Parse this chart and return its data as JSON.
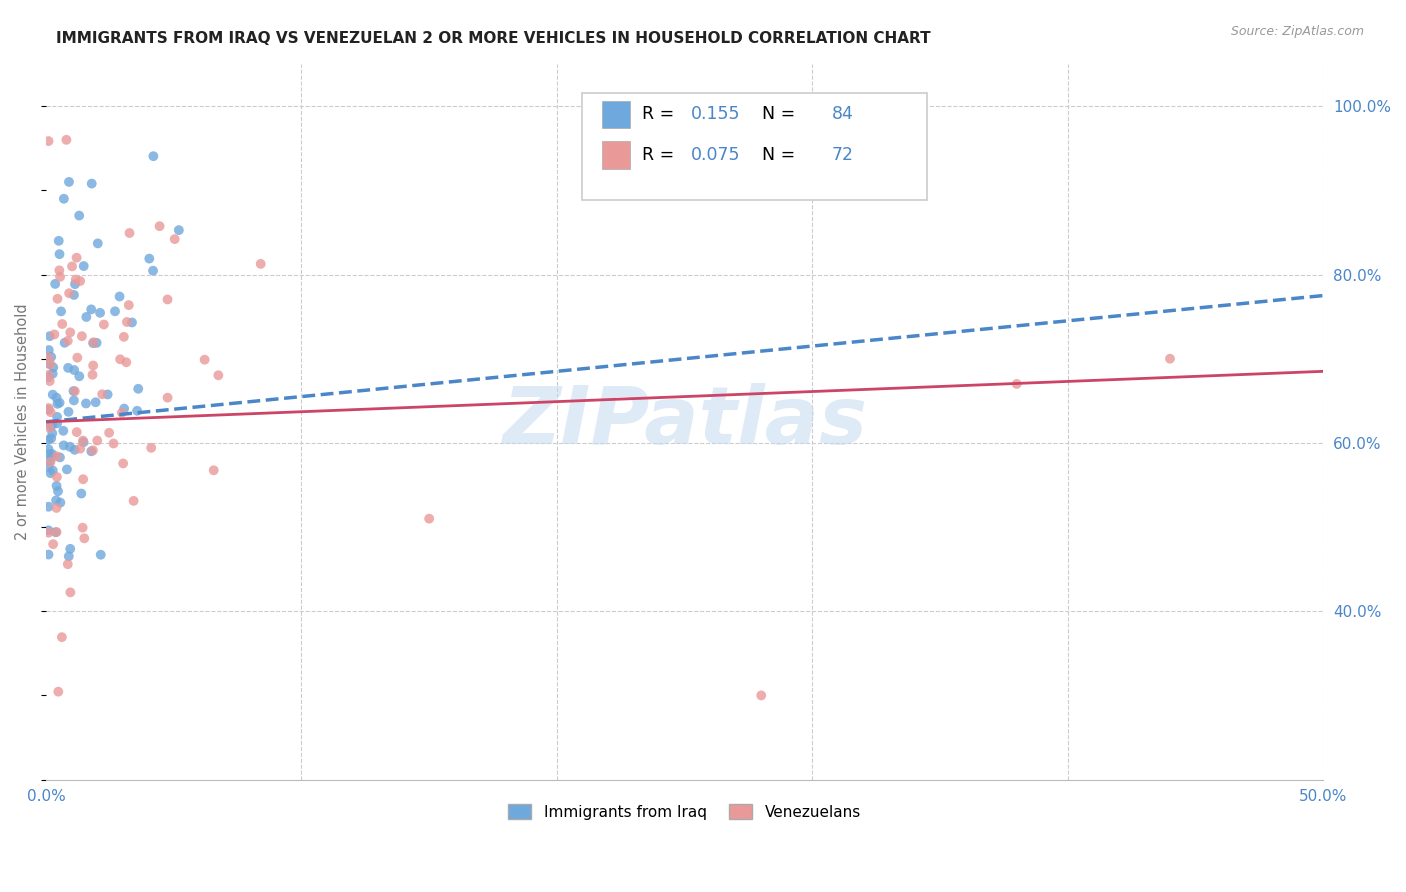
{
  "title": "IMMIGRANTS FROM IRAQ VS VENEZUELAN 2 OR MORE VEHICLES IN HOUSEHOLD CORRELATION CHART",
  "source": "Source: ZipAtlas.com",
  "ylabel": "2 or more Vehicles in Household",
  "x_min": 0.0,
  "x_max": 0.5,
  "y_min": 0.2,
  "y_max": 1.05,
  "x_ticks": [
    0.0,
    0.1,
    0.2,
    0.3,
    0.4,
    0.5
  ],
  "x_tick_labels": [
    "0.0%",
    "",
    "",
    "",
    "",
    "50.0%"
  ],
  "y_ticks_right": [
    0.4,
    0.6,
    0.8,
    1.0
  ],
  "y_tick_labels_right": [
    "40.0%",
    "60.0%",
    "80.0%",
    "100.0%"
  ],
  "iraq_R": 0.155,
  "iraq_N": 84,
  "venezuela_R": 0.075,
  "venezuela_N": 72,
  "iraq_color": "#6fa8dc",
  "venezuela_color": "#ea9999",
  "iraq_line_color": "#4a86c8",
  "venezuela_line_color": "#cc4466",
  "grid_color": "#cccccc",
  "title_color": "#222222",
  "axis_label_color": "#777777",
  "tick_color_right": "#4a86c8",
  "watermark_color": "#c5d9f1",
  "legend_label1": "Immigrants from Iraq",
  "legend_label2": "Venezuelans",
  "iraq_line_x0": 0.0,
  "iraq_line_x1": 0.5,
  "iraq_line_y0": 0.625,
  "iraq_line_y1": 0.775,
  "ven_line_x0": 0.0,
  "ven_line_x1": 0.5,
  "ven_line_y0": 0.625,
  "ven_line_y1": 0.685
}
